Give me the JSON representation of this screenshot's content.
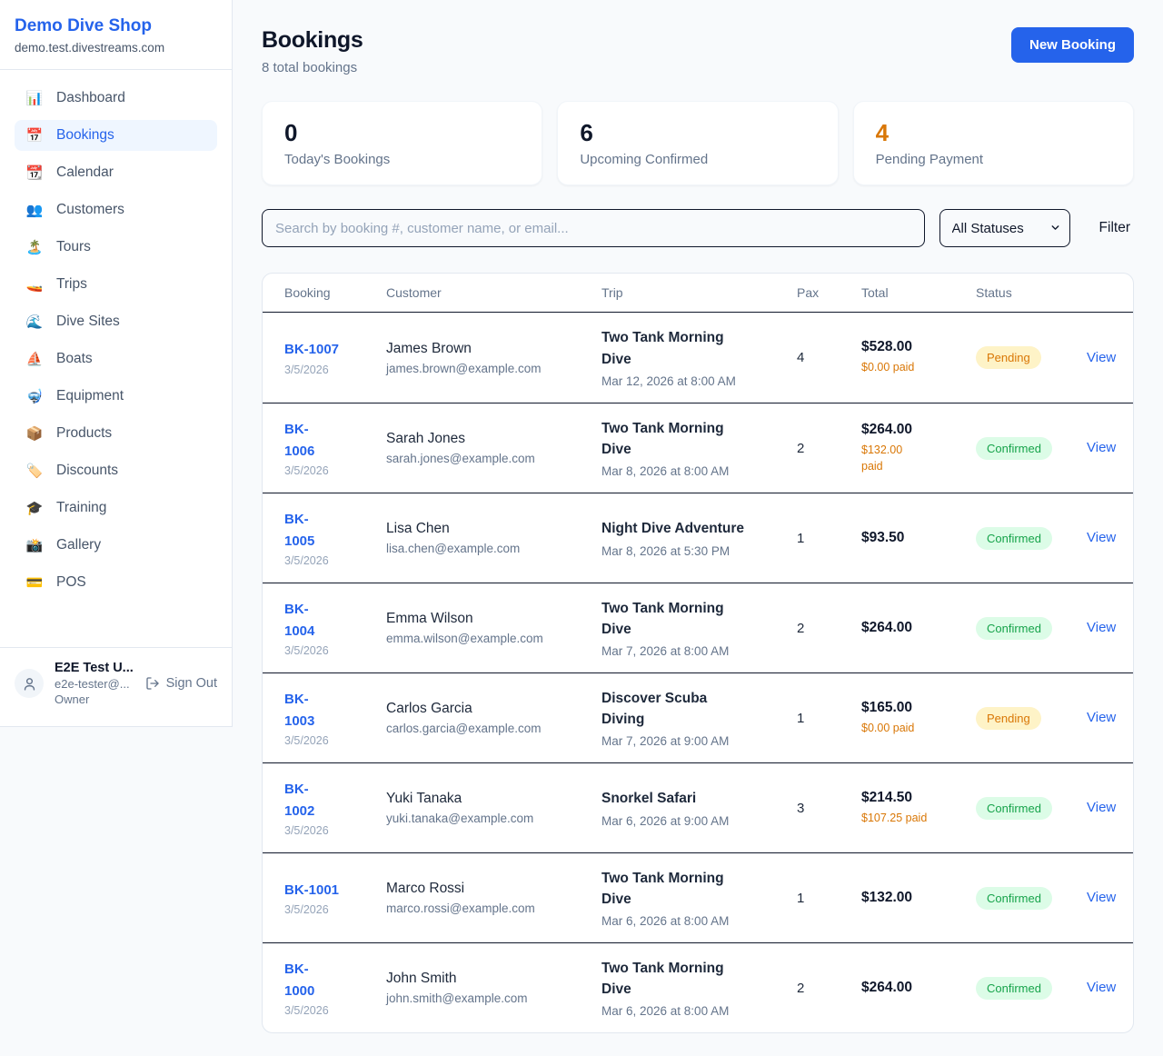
{
  "sidebar": {
    "brand": "Demo Dive Shop",
    "domain": "demo.test.divestreams.com",
    "items": [
      {
        "label": "Dashboard",
        "icon_name": "dashboard-chart-icon",
        "glyph": "📊",
        "active": false
      },
      {
        "label": "Bookings",
        "icon_name": "bookings-calendar-icon",
        "glyph": "📅",
        "active": true
      },
      {
        "label": "Calendar",
        "icon_name": "calendar-icon",
        "glyph": "📆",
        "active": false
      },
      {
        "label": "Customers",
        "icon_name": "customers-people-icon",
        "glyph": "👥",
        "active": false
      },
      {
        "label": "Tours",
        "icon_name": "tours-island-icon",
        "glyph": "🏝️",
        "active": false
      },
      {
        "label": "Trips",
        "icon_name": "trips-speedboat-icon",
        "glyph": "🚤",
        "active": false
      },
      {
        "label": "Dive Sites",
        "icon_name": "dive-sites-wave-icon",
        "glyph": "🌊",
        "active": false
      },
      {
        "label": "Boats",
        "icon_name": "boats-sailboat-icon",
        "glyph": "⛵",
        "active": false
      },
      {
        "label": "Equipment",
        "icon_name": "equipment-diving-mask-icon",
        "glyph": "🤿",
        "active": false
      },
      {
        "label": "Products",
        "icon_name": "products-package-icon",
        "glyph": "📦",
        "active": false
      },
      {
        "label": "Discounts",
        "icon_name": "discounts-tag-icon",
        "glyph": "🏷️",
        "active": false
      },
      {
        "label": "Training",
        "icon_name": "training-graduation-cap-icon",
        "glyph": "🎓",
        "active": false
      },
      {
        "label": "Gallery",
        "icon_name": "gallery-camera-icon",
        "glyph": "📸",
        "active": false
      },
      {
        "label": "POS",
        "icon_name": "pos-credit-card-icon",
        "glyph": "💳",
        "active": false
      }
    ],
    "user": {
      "name": "E2E Test U...",
      "email": "e2e-tester@...",
      "role": "Owner",
      "sign_out_label": "Sign Out"
    }
  },
  "header": {
    "title": "Bookings",
    "subtitle": "8 total bookings",
    "new_booking_label": "New Booking"
  },
  "stats": [
    {
      "value": "0",
      "label": "Today's Bookings",
      "color": "#0f172a"
    },
    {
      "value": "6",
      "label": "Upcoming Confirmed",
      "color": "#0f172a"
    },
    {
      "value": "4",
      "label": "Pending Payment",
      "color": "#d97706"
    }
  ],
  "controls": {
    "search_placeholder": "Search by booking #, customer name, or email...",
    "status_options": [
      "All Statuses"
    ],
    "status_selected": "All Statuses",
    "filter_label": "Filter"
  },
  "table": {
    "columns": [
      "Booking",
      "Customer",
      "Trip",
      "Pax",
      "Total",
      "Status"
    ],
    "view_label": "View",
    "status_colors": {
      "pending": {
        "bg": "#fef3c7",
        "text": "#d97706"
      },
      "confirmed": {
        "bg": "#dcfce7",
        "text": "#16a34a"
      }
    },
    "rows": [
      {
        "id": "BK-1007",
        "id_display": "BK-1007",
        "date": "3/5/2026",
        "customer": "James Brown",
        "email": "james.brown@example.com",
        "trip": "Two Tank Morning Dive",
        "trip_display": "Two Tank Morning\nDive",
        "trip_date": "Mar 12, 2026 at 8:00 AM",
        "pax": "4",
        "total": "$528.00",
        "paid": "$0.00 paid",
        "paid_display": "$0.00 paid",
        "status": "Pending"
      },
      {
        "id": "BK-1006",
        "id_display": "BK-\n1006",
        "date": "3/5/2026",
        "customer": "Sarah Jones",
        "email": "sarah.jones@example.com",
        "trip": "Two Tank Morning Dive",
        "trip_display": "Two Tank Morning\nDive",
        "trip_date": "Mar 8, 2026 at 8:00 AM",
        "pax": "2",
        "total": "$264.00",
        "paid": "$132.00 paid",
        "paid_display": "$132.00\npaid",
        "status": "Confirmed"
      },
      {
        "id": "BK-1005",
        "id_display": "BK-\n1005",
        "date": "3/5/2026",
        "customer": "Lisa Chen",
        "email": "lisa.chen@example.com",
        "trip": "Night Dive Adventure",
        "trip_display": "Night Dive Adventure",
        "trip_date": "Mar 8, 2026 at 5:30 PM",
        "pax": "1",
        "total": "$93.50",
        "paid": null,
        "paid_display": null,
        "status": "Confirmed"
      },
      {
        "id": "BK-1004",
        "id_display": "BK-\n1004",
        "date": "3/5/2026",
        "customer": "Emma Wilson",
        "email": "emma.wilson@example.com",
        "trip": "Two Tank Morning Dive",
        "trip_display": "Two Tank Morning\nDive",
        "trip_date": "Mar 7, 2026 at 8:00 AM",
        "pax": "2",
        "total": "$264.00",
        "paid": null,
        "paid_display": null,
        "status": "Confirmed"
      },
      {
        "id": "BK-1003",
        "id_display": "BK-\n1003",
        "date": "3/5/2026",
        "customer": "Carlos Garcia",
        "email": "carlos.garcia@example.com",
        "trip": "Discover Scuba Diving",
        "trip_display": "Discover Scuba\nDiving",
        "trip_date": "Mar 7, 2026 at 9:00 AM",
        "pax": "1",
        "total": "$165.00",
        "paid": "$0.00 paid",
        "paid_display": "$0.00 paid",
        "status": "Pending"
      },
      {
        "id": "BK-1002",
        "id_display": "BK-\n1002",
        "date": "3/5/2026",
        "customer": "Yuki Tanaka",
        "email": "yuki.tanaka@example.com",
        "trip": "Snorkel Safari",
        "trip_display": "Snorkel Safari",
        "trip_date": "Mar 6, 2026 at 9:00 AM",
        "pax": "3",
        "total": "$214.50",
        "paid": "$107.25 paid",
        "paid_display": "$107.25 paid",
        "status": "Confirmed"
      },
      {
        "id": "BK-1001",
        "id_display": "BK-1001",
        "date": "3/5/2026",
        "customer": "Marco Rossi",
        "email": "marco.rossi@example.com",
        "trip": "Two Tank Morning Dive",
        "trip_display": "Two Tank Morning\nDive",
        "trip_date": "Mar 6, 2026 at 8:00 AM",
        "pax": "1",
        "total": "$132.00",
        "paid": null,
        "paid_display": null,
        "status": "Confirmed"
      },
      {
        "id": "BK-1000",
        "id_display": "BK-\n1000",
        "date": "3/5/2026",
        "customer": "John Smith",
        "email": "john.smith@example.com",
        "trip": "Two Tank Morning Dive",
        "trip_display": "Two Tank Morning\nDive",
        "trip_date": "Mar 6, 2026 at 8:00 AM",
        "pax": "2",
        "total": "$264.00",
        "paid": null,
        "paid_display": null,
        "status": "Confirmed"
      }
    ]
  },
  "colors": {
    "accent_blue": "#2563eb",
    "pending_orange": "#d97706",
    "confirmed_green": "#16a34a",
    "page_bg": "#f8fafc"
  }
}
